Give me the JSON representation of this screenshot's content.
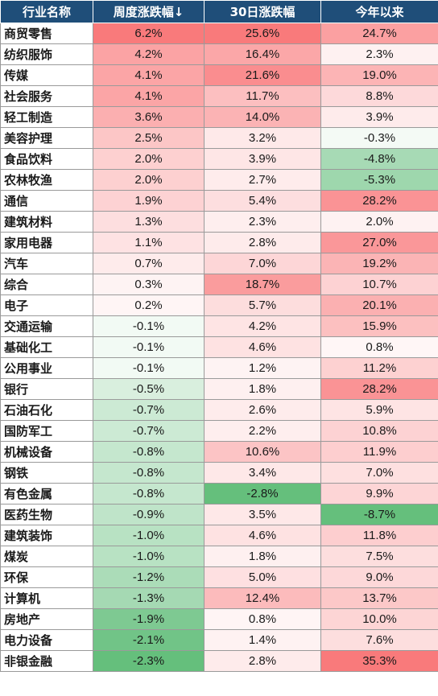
{
  "chart_data": {
    "type": "table",
    "columns": [
      "行业名称",
      "周度涨跌幅↓",
      "30日涨跌幅",
      "今年以来"
    ],
    "rows": [
      {
        "name": "商贸零售",
        "weekly": "6.2%",
        "d30": "25.6%",
        "ytd": "24.7%"
      },
      {
        "name": "纺织服饰",
        "weekly": "4.2%",
        "d30": "16.4%",
        "ytd": "2.3%"
      },
      {
        "name": "传媒",
        "weekly": "4.1%",
        "d30": "21.6%",
        "ytd": "19.0%"
      },
      {
        "name": "社会服务",
        "weekly": "4.1%",
        "d30": "11.7%",
        "ytd": "8.8%"
      },
      {
        "name": "轻工制造",
        "weekly": "3.6%",
        "d30": "14.0%",
        "ytd": "3.9%"
      },
      {
        "name": "美容护理",
        "weekly": "2.5%",
        "d30": "3.2%",
        "ytd": "-0.3%"
      },
      {
        "name": "食品饮料",
        "weekly": "2.0%",
        "d30": "3.9%",
        "ytd": "-4.8%"
      },
      {
        "name": "农林牧渔",
        "weekly": "2.0%",
        "d30": "2.7%",
        "ytd": "-5.3%"
      },
      {
        "name": "通信",
        "weekly": "1.9%",
        "d30": "5.4%",
        "ytd": "28.2%"
      },
      {
        "name": "建筑材料",
        "weekly": "1.3%",
        "d30": "2.3%",
        "ytd": "2.0%"
      },
      {
        "name": "家用电器",
        "weekly": "1.1%",
        "d30": "2.8%",
        "ytd": "27.0%"
      },
      {
        "name": "汽车",
        "weekly": "0.7%",
        "d30": "7.0%",
        "ytd": "19.2%"
      },
      {
        "name": "综合",
        "weekly": "0.3%",
        "d30": "18.7%",
        "ytd": "10.7%"
      },
      {
        "name": "电子",
        "weekly": "0.2%",
        "d30": "5.7%",
        "ytd": "20.1%"
      },
      {
        "name": "交通运输",
        "weekly": "-0.1%",
        "d30": "4.2%",
        "ytd": "15.9%"
      },
      {
        "name": "基础化工",
        "weekly": "-0.1%",
        "d30": "4.6%",
        "ytd": "0.8%"
      },
      {
        "name": "公用事业",
        "weekly": "-0.1%",
        "d30": "1.2%",
        "ytd": "11.2%"
      },
      {
        "name": "银行",
        "weekly": "-0.5%",
        "d30": "1.8%",
        "ytd": "28.2%"
      },
      {
        "name": "石油石化",
        "weekly": "-0.7%",
        "d30": "2.6%",
        "ytd": "5.9%"
      },
      {
        "name": "国防军工",
        "weekly": "-0.7%",
        "d30": "2.2%",
        "ytd": "10.8%"
      },
      {
        "name": "机械设备",
        "weekly": "-0.8%",
        "d30": "10.6%",
        "ytd": "11.9%"
      },
      {
        "name": "钢铁",
        "weekly": "-0.8%",
        "d30": "3.4%",
        "ytd": "7.0%"
      },
      {
        "name": "有色金属",
        "weekly": "-0.8%",
        "d30": "-2.8%",
        "ytd": "9.9%"
      },
      {
        "name": "医药生物",
        "weekly": "-0.9%",
        "d30": "3.5%",
        "ytd": "-8.7%"
      },
      {
        "name": "建筑装饰",
        "weekly": "-1.0%",
        "d30": "4.6%",
        "ytd": "11.8%"
      },
      {
        "name": "煤炭",
        "weekly": "-1.0%",
        "d30": "1.8%",
        "ytd": "7.5%"
      },
      {
        "name": "环保",
        "weekly": "-1.2%",
        "d30": "5.0%",
        "ytd": "9.0%"
      },
      {
        "name": "计算机",
        "weekly": "-1.3%",
        "d30": "12.4%",
        "ytd": "13.7%"
      },
      {
        "name": "房地产",
        "weekly": "-1.9%",
        "d30": "0.8%",
        "ytd": "10.0%"
      },
      {
        "name": "电力设备",
        "weekly": "-2.1%",
        "d30": "1.4%",
        "ytd": "7.6%"
      },
      {
        "name": "非银金融",
        "weekly": "-2.3%",
        "d30": "2.8%",
        "ytd": "35.3%"
      }
    ],
    "colors": {
      "header_bg": "#1f4e79",
      "positive": "#f8696b",
      "negative": "#63be7b",
      "neutral": "#ffffff"
    }
  }
}
